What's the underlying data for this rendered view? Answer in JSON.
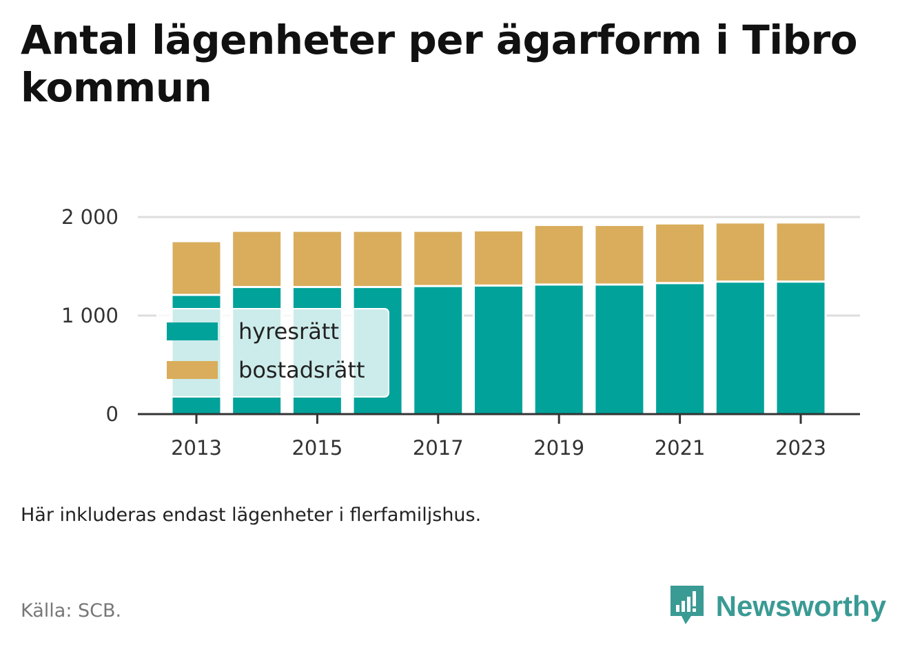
{
  "title": "Antal lägenheter per ägarform i Tibro kommun",
  "note": "Här inkluderas endast lägenheter i flerfamiljshus.",
  "source": "Källa: SCB.",
  "brand": "Newsworthy",
  "colors": {
    "hyresratt": "#00a29a",
    "bostadsratt": "#d9ad5c",
    "grid": "#dddddd",
    "axis": "#333333",
    "brand": "#3a9a94",
    "legend_bg": "#d4eeec"
  },
  "chart_data": {
    "type": "bar",
    "stacked": true,
    "categories": [
      "2013",
      "2014",
      "2015",
      "2016",
      "2017",
      "2018",
      "2019",
      "2020",
      "2021",
      "2022",
      "2023"
    ],
    "x_tick_labels": [
      "2013",
      "2015",
      "2017",
      "2019",
      "2021",
      "2023"
    ],
    "series": [
      {
        "name": "hyresrätt",
        "values": [
          1210,
          1290,
          1290,
          1290,
          1300,
          1305,
          1315,
          1315,
          1330,
          1345,
          1345
        ]
      },
      {
        "name": "bostadsrätt",
        "values": [
          545,
          570,
          570,
          570,
          560,
          560,
          605,
          605,
          605,
          600,
          600
        ]
      }
    ],
    "ylim": [
      0,
      2000
    ],
    "y_ticks": [
      0,
      1000,
      2000
    ],
    "y_tick_labels": [
      "0",
      "1 000",
      "2 000"
    ],
    "grid": true,
    "legend_position": "bottom-left inside"
  }
}
